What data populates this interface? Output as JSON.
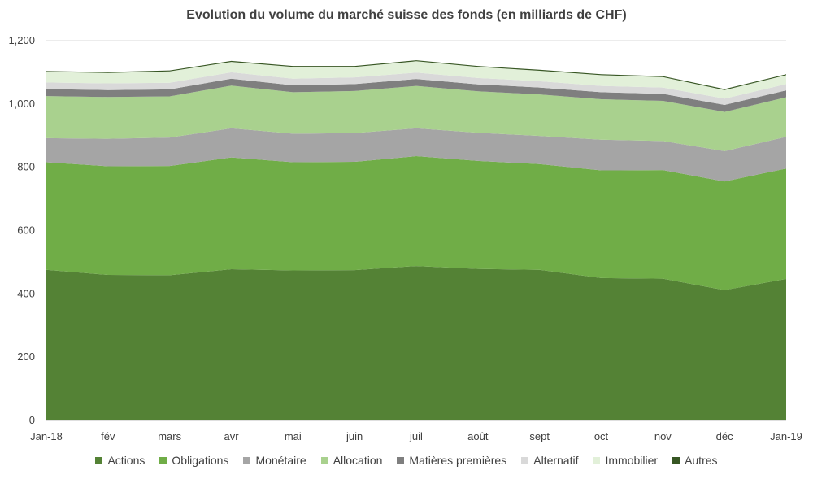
{
  "chart_data": {
    "type": "area",
    "stacked": true,
    "title": "Evolution du volume du marché suisse des fonds (en milliards de CHF)",
    "xlabel": "",
    "ylabel": "",
    "ylim": [
      0,
      1200
    ],
    "yticks": [
      0,
      200,
      400,
      600,
      800,
      1000,
      1200
    ],
    "ytick_labels": [
      "0",
      "200",
      "400",
      "600",
      "800",
      "1,000",
      "1,200"
    ],
    "grid": "horizontal",
    "legend_position": "bottom",
    "categories": [
      "Jan-18",
      "fév",
      "mars",
      "avr",
      "mai",
      "juin",
      "juil",
      "août",
      "sept",
      "oct",
      "nov",
      "déc",
      "Jan-19"
    ],
    "series": [
      {
        "name": "Actions",
        "color": "#548235",
        "values": [
          476,
          460,
          459,
          478,
          474,
          475,
          488,
          479,
          476,
          450,
          448,
          412,
          447
        ]
      },
      {
        "name": "Obligations",
        "color": "#70AD47",
        "values": [
          340,
          343,
          345,
          353,
          342,
          342,
          347,
          341,
          334,
          340,
          343,
          343,
          349
        ]
      },
      {
        "name": "Monétaire",
        "color": "#A5A5A5",
        "values": [
          76,
          87,
          90,
          92,
          90,
          91,
          88,
          89,
          89,
          97,
          92,
          96,
          100
        ]
      },
      {
        "name": "Allocation",
        "color": "#A9D18E",
        "values": [
          133,
          132,
          130,
          135,
          131,
          133,
          134,
          131,
          131,
          128,
          127,
          124,
          125
        ]
      },
      {
        "name": "Matières premières",
        "color": "#7F7F7F",
        "values": [
          22,
          22,
          22,
          22,
          22,
          22,
          22,
          22,
          22,
          22,
          22,
          22,
          22
        ]
      },
      {
        "name": "Alternatif",
        "color": "#D9D9D9",
        "values": [
          21,
          21,
          21,
          20,
          21,
          21,
          20,
          20,
          20,
          20,
          20,
          20,
          20
        ]
      },
      {
        "name": "Immobilier",
        "color": "#E2F0D9",
        "values": [
          33,
          33,
          36,
          33,
          37,
          33,
          36,
          35,
          33,
          34,
          33,
          27,
          28
        ]
      },
      {
        "name": "Autres",
        "color": "#375623",
        "values": [
          3,
          3,
          3,
          3,
          3,
          3,
          3,
          3,
          3,
          3,
          3,
          3,
          3
        ]
      }
    ]
  }
}
